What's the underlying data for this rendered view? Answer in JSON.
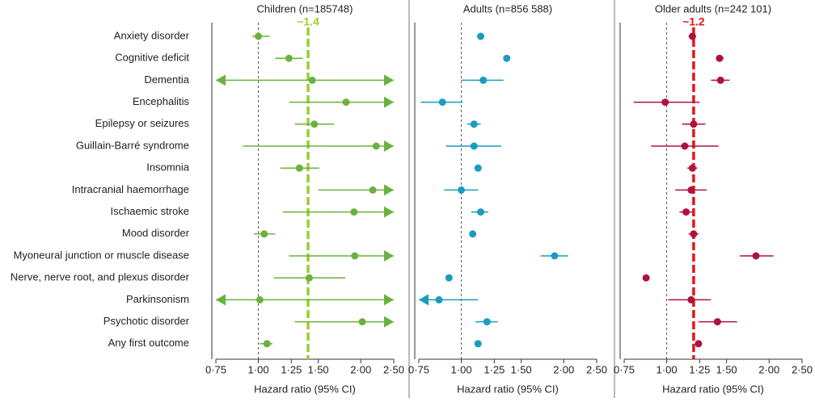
{
  "chart_data": [
    {
      "type": "forest",
      "title": "Children (n=185748)",
      "xlabel": "Hazard ratio (95% CI)",
      "log_scale": true,
      "xlim": [
        0.75,
        2.5
      ],
      "xticks": [
        {
          "value": 0.75,
          "label": "0·75"
        },
        {
          "value": 1,
          "label": "1·00"
        },
        {
          "value": 1.25,
          "label": "1·25"
        },
        {
          "value": 1.5,
          "label": "1·50"
        },
        {
          "value": 2,
          "label": "2·00"
        },
        {
          "value": 2.5,
          "label": "2·50"
        }
      ],
      "null_line": 1,
      "color": "#6ab23e",
      "reference": {
        "value": 1.4,
        "label": "~1.4",
        "color": "#9acd32"
      },
      "categories": [
        "Anxiety disorder",
        "Cognitive deficit",
        "Dementia",
        "Encephalitis",
        "Epilepsy or seizures",
        "Guillain-Barré syndrome",
        "Insomnia",
        "Intracranial haemorrhage",
        "Ischaemic stroke",
        "Mood disorder",
        "Myoneural junction or muscle disease",
        "Nerve, nerve root, and plexus disorder",
        "Parkinsonism",
        "Psychotic disorder",
        "Any first outcome"
      ],
      "values": [
        1.0,
        1.23,
        1.44,
        1.81,
        1.46,
        2.22,
        1.32,
        2.17,
        1.91,
        1.04,
        1.92,
        1.41,
        1.01,
        2.02,
        1.06
      ],
      "lower": [
        0.96,
        1.12,
        0.5,
        1.23,
        1.28,
        0.9,
        1.16,
        1.5,
        1.18,
        0.97,
        1.23,
        1.11,
        0.5,
        1.28,
        1.01
      ],
      "upper": [
        1.08,
        1.35,
        4.0,
        3.0,
        1.67,
        3.5,
        1.51,
        3.0,
        3.0,
        1.12,
        3.0,
        1.8,
        4.0,
        3.0,
        1.1
      ]
    },
    {
      "type": "forest",
      "title": "Adults (n=856 588)",
      "xlabel": "Hazard ratio (95% CI)",
      "log_scale": true,
      "xlim": [
        0.75,
        2.5
      ],
      "xticks": [
        {
          "value": 0.75,
          "label": "0·75"
        },
        {
          "value": 1,
          "label": "1·00"
        },
        {
          "value": 1.25,
          "label": "1·25"
        },
        {
          "value": 1.5,
          "label": "1·50"
        },
        {
          "value": 2,
          "label": "2·00"
        },
        {
          "value": 2.5,
          "label": "2·50"
        }
      ],
      "null_line": 1,
      "color": "#1a9cbf",
      "values": [
        1.14,
        1.36,
        1.16,
        0.88,
        1.09,
        1.09,
        1.12,
        1.0,
        1.14,
        1.08,
        1.88,
        0.92,
        0.86,
        1.19,
        1.12
      ],
      "lower": [
        1.12,
        1.34,
        1.0,
        0.76,
        1.04,
        0.9,
        1.1,
        0.89,
        1.07,
        1.06,
        1.71,
        0.9,
        0.6,
        1.1,
        1.1
      ],
      "upper": [
        1.16,
        1.38,
        1.33,
        1.01,
        1.14,
        1.31,
        1.14,
        1.12,
        1.2,
        1.1,
        2.06,
        0.94,
        1.12,
        1.28,
        1.14
      ]
    },
    {
      "type": "forest",
      "title": "Older adults (n=242 101)",
      "xlabel": "Hazard ratio (95% CI)",
      "log_scale": true,
      "xlim": [
        0.75,
        2.5
      ],
      "xticks": [
        {
          "value": 0.75,
          "label": "0·75"
        },
        {
          "value": 1,
          "label": "1·00"
        },
        {
          "value": 1.25,
          "label": "1·25"
        },
        {
          "value": 1.5,
          "label": "1·50"
        },
        {
          "value": 2,
          "label": "2·00"
        },
        {
          "value": 2.5,
          "label": "2·50"
        }
      ],
      "null_line": 1,
      "color": "#b0123f",
      "reference": {
        "value": 1.2,
        "label": "~1.2",
        "color": "#e4141b"
      },
      "values": [
        1.19,
        1.43,
        1.44,
        0.99,
        1.2,
        1.13,
        1.19,
        1.18,
        1.14,
        1.2,
        1.83,
        0.87,
        1.18,
        1.41,
        1.24
      ],
      "lower": [
        1.16,
        1.4,
        1.35,
        0.8,
        1.11,
        0.9,
        1.15,
        1.06,
        1.09,
        1.16,
        1.64,
        0.85,
        1.01,
        1.24,
        1.21
      ],
      "upper": [
        1.22,
        1.47,
        1.53,
        1.25,
        1.3,
        1.42,
        1.23,
        1.31,
        1.19,
        1.24,
        2.06,
        0.89,
        1.35,
        1.61,
        1.27
      ]
    }
  ]
}
